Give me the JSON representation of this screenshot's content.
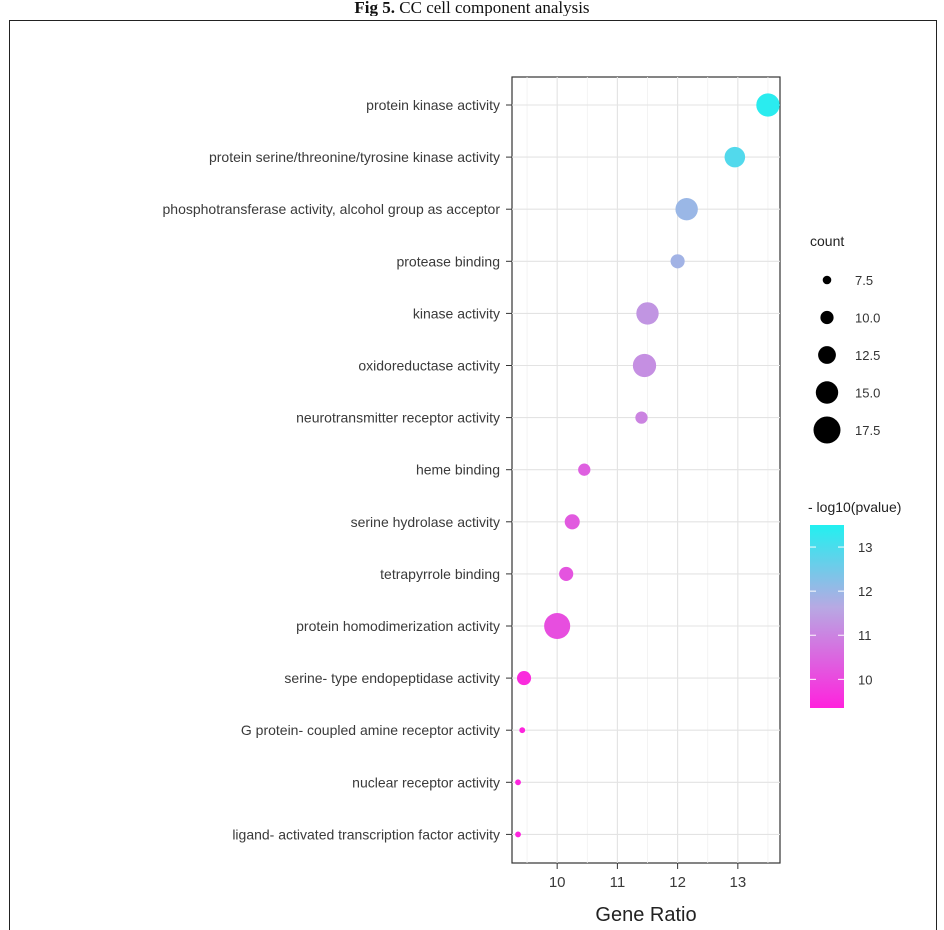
{
  "figure": {
    "title_bold": "Fig 5.",
    "title_rest": " CC cell component analysis"
  },
  "chart_data": {
    "type": "scatter",
    "xlabel": "Gene Ratio",
    "ylabel": "",
    "xlim": [
      9.25,
      13.7
    ],
    "xticks": [
      10,
      11,
      12,
      13
    ],
    "grid": true,
    "categories": [
      "protein kinase activity",
      "protein serine/threonine/tyrosine kinase activity",
      "phosphotransferase activity, alcohol group as acceptor",
      "protease binding",
      "kinase activity",
      "oxidoreductase activity",
      "neurotransmitter receptor activity",
      "heme binding",
      "serine hydrolase activity",
      "tetrapyrrole binding",
      "protein homodimerization activity",
      "serine- type endopeptidase activity",
      "G protein- coupled amine receptor activity",
      "nuclear receptor activity",
      "ligand- activated transcription factor activity"
    ],
    "points": [
      {
        "term": "protein kinase activity",
        "gene_ratio": 13.5,
        "count": 15.5,
        "neg_log10_p": 13.4
      },
      {
        "term": "protein serine/threonine/tyrosine kinase activity",
        "gene_ratio": 12.95,
        "count": 14.0,
        "neg_log10_p": 12.9
      },
      {
        "term": "phosphotransferase activity, alcohol group as acceptor",
        "gene_ratio": 12.15,
        "count": 15.0,
        "neg_log10_p": 12.0
      },
      {
        "term": "protease binding",
        "gene_ratio": 12.0,
        "count": 10.5,
        "neg_log10_p": 11.9
      },
      {
        "term": "kinase activity",
        "gene_ratio": 11.5,
        "count": 15.0,
        "neg_log10_p": 11.3
      },
      {
        "term": "oxidoreductase activity",
        "gene_ratio": 11.45,
        "count": 15.5,
        "neg_log10_p": 11.2
      },
      {
        "term": "neurotransmitter receptor activity",
        "gene_ratio": 11.4,
        "count": 9.5,
        "neg_log10_p": 11.0
      },
      {
        "term": "heme binding",
        "gene_ratio": 10.45,
        "count": 9.5,
        "neg_log10_p": 10.4
      },
      {
        "term": "serine hydrolase activity",
        "gene_ratio": 10.25,
        "count": 11.0,
        "neg_log10_p": 10.3
      },
      {
        "term": "tetrapyrrole binding",
        "gene_ratio": 10.15,
        "count": 10.5,
        "neg_log10_p": 10.2
      },
      {
        "term": "protein homodimerization activity",
        "gene_ratio": 10.0,
        "count": 17.0,
        "neg_log10_p": 10.1
      },
      {
        "term": "serine- type endopeptidase activity",
        "gene_ratio": 9.45,
        "count": 10.5,
        "neg_log10_p": 9.5
      },
      {
        "term": "G protein- coupled amine receptor activity",
        "gene_ratio": 9.42,
        "count": 6.0,
        "neg_log10_p": 9.4
      },
      {
        "term": "nuclear receptor activity",
        "gene_ratio": 9.35,
        "count": 6.0,
        "neg_log10_p": 9.4
      },
      {
        "term": "ligand- activated transcription factor activity",
        "gene_ratio": 9.35,
        "count": 6.0,
        "neg_log10_p": 9.4
      }
    ],
    "size_legend": {
      "title": "count",
      "values": [
        7.5,
        10.0,
        12.5,
        15.0,
        17.5
      ],
      "labels": [
        "7.5",
        "10.0",
        "12.5",
        "15.0",
        "17.5"
      ]
    },
    "color_legend": {
      "title": "- log10(pvalue)",
      "range": [
        9.35,
        13.5
      ],
      "ticks": [
        10,
        11,
        12,
        13
      ],
      "labels": [
        "10",
        "11",
        "12",
        "13"
      ],
      "low_color": "#ff22dd",
      "mid_color": "#b7a9e3",
      "high_color": "#22f0f0"
    }
  }
}
